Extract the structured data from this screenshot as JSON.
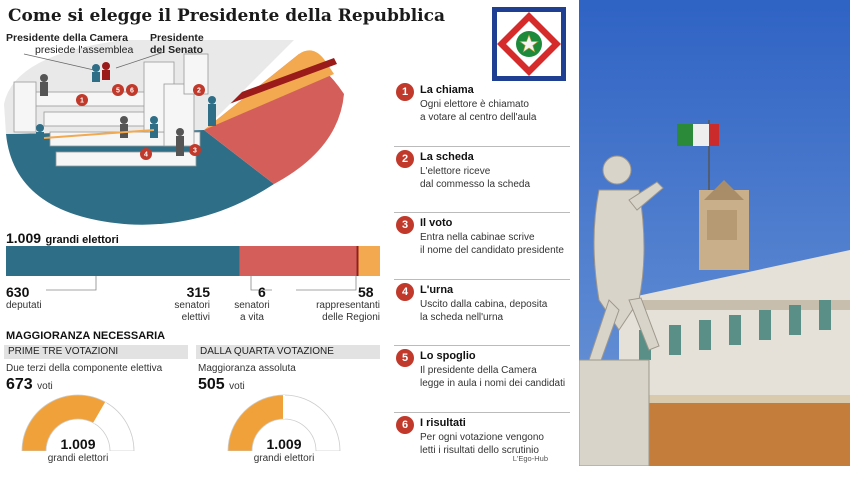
{
  "title": "Come si elegge il Presidente della Repubblica",
  "hemicycle": {
    "camera_title": "Presidente della Camera",
    "camera_sub": "presiede l'assemblea",
    "senato_title_1": "Presidente",
    "senato_title_2": "del Senato",
    "markers": [
      "1",
      "2",
      "3",
      "4",
      "5",
      "6"
    ]
  },
  "electors": {
    "total": "1.009",
    "total_label": "grandi elettori",
    "groups": [
      {
        "value": "630",
        "label": "deputati",
        "count": 630,
        "color": "#2e6e86"
      },
      {
        "value": "315",
        "label": "senatori elettivi",
        "count": 315,
        "color": "#d45f5a"
      },
      {
        "value": "6",
        "label": "senatori a vita",
        "count": 6,
        "color": "#9b1b1b"
      },
      {
        "value": "58",
        "label": "rappresentanti delle Regioni",
        "count": 58,
        "color": "#f2a94f"
      }
    ]
  },
  "majority": {
    "heading": "MAGGIORANZA NECESSARIA",
    "first": {
      "band": "PRIME TRE VOTAZIONI",
      "desc": "Due terzi della componente elettiva",
      "value": "673",
      "unit": "voti",
      "fraction": 0.667,
      "gauge_value": "1.009",
      "gauge_label": "grandi elettori"
    },
    "fourth": {
      "band": "DALLA QUARTA VOTAZIONE",
      "desc": "Maggioranza assoluta",
      "value": "505",
      "unit": "voti",
      "fraction": 0.5,
      "gauge_value": "1.009",
      "gauge_label": "grandi elettori"
    }
  },
  "steps": [
    {
      "num": "1",
      "title": "La chiama",
      "desc": "Ogni elettore è chiamato\na votare al centro dell'aula"
    },
    {
      "num": "2",
      "title": "La scheda",
      "desc": "L'elettore riceve\ndal commesso la scheda"
    },
    {
      "num": "3",
      "title": "Il voto",
      "desc": "Entra nella cabinae scrive\nil nome del candidato presidente"
    },
    {
      "num": "4",
      "title": "L'urna",
      "desc": "Uscito dalla cabina, deposita\nla scheda nell'urna"
    },
    {
      "num": "5",
      "title": "Lo spoglio",
      "desc": "Il presidente della Camera\nlegge in aula i nomi dei candidati"
    },
    {
      "num": "6",
      "title": "I risultati",
      "desc": "Per ogni votazione vengono\nletti i risultati dello scrutinio"
    }
  ],
  "credit": "L'Ego-Hub",
  "colors": {
    "camera": "#2e6e86",
    "senato": "#d45f5a",
    "vita": "#9b1b1b",
    "regioni": "#f2a94f",
    "marker": "#c0392b",
    "gauge": "#f0a13a",
    "sky": "#3a6fc8"
  }
}
